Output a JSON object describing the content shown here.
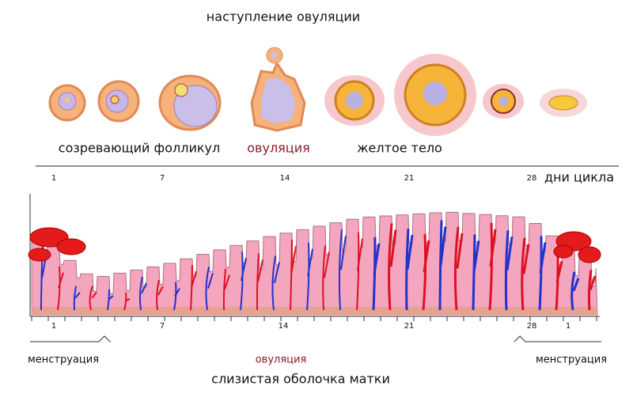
{
  "header": {
    "title": "наступление овуляции"
  },
  "ovary": {
    "labels": [
      "созревающий фолликул",
      "овуляция",
      "желтое тело"
    ]
  },
  "cycle_axis": {
    "days": [
      1,
      7,
      14,
      21,
      28
    ],
    "label": "дни цикла"
  },
  "uterus": {
    "days": [
      1,
      7,
      14,
      21,
      28,
      1
    ],
    "phases": [
      "менструация",
      "овуляция",
      "менструация"
    ],
    "caption": "слизистая оболочка матки"
  }
}
